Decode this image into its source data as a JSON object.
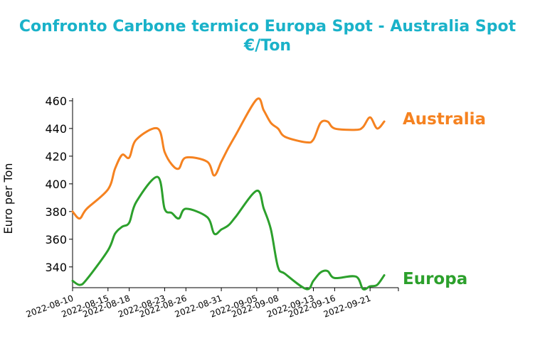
{
  "chart_data": {
    "type": "line",
    "title": "Confronto Carbone termico Europa Spot - Australia Spot",
    "subtitle": "€/Ton",
    "ylabel": "Euro per Ton",
    "xlabel": "",
    "ylim": [
      325,
      462
    ],
    "xlim": [
      "2022-08-10",
      "2022-09-25"
    ],
    "yticks": [
      340,
      360,
      380,
      400,
      420,
      440,
      460
    ],
    "xticks": [
      "2022-08-10",
      "2022-08-15",
      "2022-08-18",
      "2022-08-23",
      "2022-08-26",
      "2022-08-31",
      "2022-09-05",
      "2022-09-08",
      "2022-09-13",
      "2022-09-16",
      "2022-09-21"
    ],
    "grid": false,
    "legend": "direct labels at line ends",
    "series": [
      {
        "name": "Australia",
        "color": "#f58220",
        "points": [
          [
            "2022-08-10",
            380
          ],
          [
            "2022-08-11",
            375
          ],
          [
            "2022-08-12",
            382
          ],
          [
            "2022-08-15",
            396
          ],
          [
            "2022-08-16",
            411
          ],
          [
            "2022-08-17",
            421
          ],
          [
            "2022-08-18",
            419
          ],
          [
            "2022-08-19",
            432
          ],
          [
            "2022-08-22",
            440
          ],
          [
            "2022-08-23",
            423
          ],
          [
            "2022-08-24",
            414
          ],
          [
            "2022-08-25",
            411
          ],
          [
            "2022-08-26",
            419
          ],
          [
            "2022-08-29",
            416
          ],
          [
            "2022-08-30",
            406
          ],
          [
            "2022-08-31",
            416
          ],
          [
            "2022-09-01",
            426
          ],
          [
            "2022-09-02",
            435
          ],
          [
            "2022-09-05",
            461
          ],
          [
            "2022-09-06",
            453
          ],
          [
            "2022-09-07",
            444
          ],
          [
            "2022-09-08",
            440
          ],
          [
            "2022-09-09",
            434
          ],
          [
            "2022-09-12",
            430
          ],
          [
            "2022-09-13",
            432
          ],
          [
            "2022-09-14",
            444
          ],
          [
            "2022-09-15",
            445
          ],
          [
            "2022-09-16",
            440
          ],
          [
            "2022-09-19",
            439
          ],
          [
            "2022-09-20",
            441
          ],
          [
            "2022-09-21",
            448
          ],
          [
            "2022-09-22",
            440
          ],
          [
            "2022-09-23",
            445
          ]
        ]
      },
      {
        "name": "Europa",
        "color": "#2ca02c",
        "points": [
          [
            "2022-08-10",
            330
          ],
          [
            "2022-08-11",
            327
          ],
          [
            "2022-08-12",
            331
          ],
          [
            "2022-08-15",
            352
          ],
          [
            "2022-08-16",
            364
          ],
          [
            "2022-08-17",
            369
          ],
          [
            "2022-08-18",
            372
          ],
          [
            "2022-08-19",
            387
          ],
          [
            "2022-08-22",
            405
          ],
          [
            "2022-08-23",
            382
          ],
          [
            "2022-08-24",
            379
          ],
          [
            "2022-08-25",
            375
          ],
          [
            "2022-08-26",
            382
          ],
          [
            "2022-08-29",
            376
          ],
          [
            "2022-08-30",
            364
          ],
          [
            "2022-08-31",
            367
          ],
          [
            "2022-09-01",
            370
          ],
          [
            "2022-09-02",
            376
          ],
          [
            "2022-09-05",
            395
          ],
          [
            "2022-09-06",
            382
          ],
          [
            "2022-09-07",
            367
          ],
          [
            "2022-09-08",
            340
          ],
          [
            "2022-09-09",
            335
          ],
          [
            "2022-09-12",
            324
          ],
          [
            "2022-09-13",
            330
          ],
          [
            "2022-09-14",
            336
          ],
          [
            "2022-09-15",
            337
          ],
          [
            "2022-09-16",
            332
          ],
          [
            "2022-09-19",
            333
          ],
          [
            "2022-09-20",
            324
          ],
          [
            "2022-09-21",
            326
          ],
          [
            "2022-09-22",
            327
          ],
          [
            "2022-09-23",
            334
          ]
        ]
      }
    ]
  }
}
